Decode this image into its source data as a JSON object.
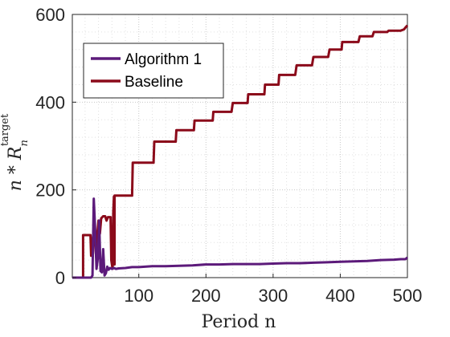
{
  "chart_data": {
    "type": "line",
    "xlabel": "Period n",
    "ylabel": "n * R_n^target",
    "ylabel_parts": {
      "base": "n * R",
      "sub": "n",
      "sup": "target"
    },
    "xlim": [
      1,
      500
    ],
    "ylim": [
      0,
      600
    ],
    "xticks": [
      100,
      200,
      300,
      400,
      500
    ],
    "yticks": [
      0,
      200,
      400,
      600
    ],
    "grid": true,
    "legend_position": "top-left",
    "series": [
      {
        "name": "Algorithm 1",
        "color": "#5c1a7a",
        "points": [
          [
            1,
            0
          ],
          [
            20,
            0
          ],
          [
            29,
            0
          ],
          [
            31,
            5
          ],
          [
            33,
            180
          ],
          [
            35,
            110
          ],
          [
            37,
            20
          ],
          [
            39,
            45
          ],
          [
            41,
            130
          ],
          [
            43,
            15
          ],
          [
            45,
            12
          ],
          [
            47,
            65
          ],
          [
            49,
            5
          ],
          [
            51,
            10
          ],
          [
            53,
            25
          ],
          [
            55,
            18
          ],
          [
            57,
            22
          ],
          [
            60,
            20
          ],
          [
            63,
            22
          ],
          [
            66,
            20
          ],
          [
            70,
            21
          ],
          [
            80,
            22
          ],
          [
            90,
            24
          ],
          [
            100,
            24
          ],
          [
            120,
            26
          ],
          [
            140,
            26
          ],
          [
            160,
            27
          ],
          [
            180,
            28
          ],
          [
            200,
            30
          ],
          [
            220,
            30
          ],
          [
            240,
            31
          ],
          [
            260,
            31
          ],
          [
            280,
            31
          ],
          [
            300,
            32
          ],
          [
            320,
            33
          ],
          [
            340,
            33
          ],
          [
            360,
            34
          ],
          [
            380,
            35
          ],
          [
            400,
            36
          ],
          [
            420,
            37
          ],
          [
            440,
            38
          ],
          [
            460,
            40
          ],
          [
            480,
            41
          ],
          [
            490,
            42
          ],
          [
            497,
            42
          ],
          [
            500,
            46
          ]
        ]
      },
      {
        "name": "Baseline",
        "color": "#8b0a1a",
        "points": [
          [
            1,
            0
          ],
          [
            15,
            0
          ],
          [
            17,
            0
          ],
          [
            17,
            97
          ],
          [
            28,
            97
          ],
          [
            29,
            50
          ],
          [
            31,
            80
          ],
          [
            33,
            110
          ],
          [
            35,
            75
          ],
          [
            37,
            40
          ],
          [
            38,
            95
          ],
          [
            40,
            130
          ],
          [
            42,
            100
          ],
          [
            44,
            135
          ],
          [
            47,
            140
          ],
          [
            50,
            140
          ],
          [
            52,
            130
          ],
          [
            54,
            138
          ],
          [
            58,
            138
          ],
          [
            59,
            40
          ],
          [
            61,
            20
          ],
          [
            62,
            150
          ],
          [
            63,
            185
          ],
          [
            63,
            40
          ],
          [
            64,
            30
          ],
          [
            64,
            187
          ],
          [
            90,
            187
          ],
          [
            91,
            262
          ],
          [
            122,
            262
          ],
          [
            123,
            310
          ],
          [
            155,
            310
          ],
          [
            156,
            336
          ],
          [
            182,
            336
          ],
          [
            183,
            358
          ],
          [
            210,
            358
          ],
          [
            211,
            378
          ],
          [
            238,
            378
          ],
          [
            240,
            398
          ],
          [
            262,
            398
          ],
          [
            263,
            418
          ],
          [
            287,
            418
          ],
          [
            288,
            440
          ],
          [
            308,
            440
          ],
          [
            309,
            462
          ],
          [
            333,
            462
          ],
          [
            335,
            484
          ],
          [
            358,
            484
          ],
          [
            360,
            503
          ],
          [
            382,
            503
          ],
          [
            384,
            520
          ],
          [
            402,
            520
          ],
          [
            403,
            537
          ],
          [
            427,
            537
          ],
          [
            429,
            550
          ],
          [
            448,
            550
          ],
          [
            450,
            560
          ],
          [
            470,
            560
          ],
          [
            472,
            563
          ],
          [
            490,
            563
          ],
          [
            495,
            566
          ],
          [
            497,
            570
          ],
          [
            500,
            575
          ]
        ]
      }
    ]
  }
}
